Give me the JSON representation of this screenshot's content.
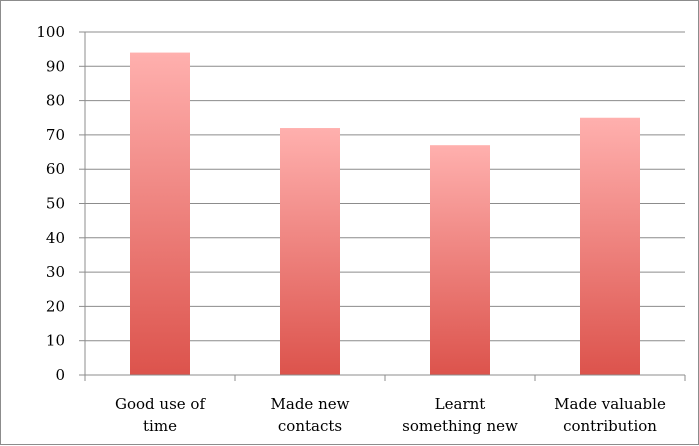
{
  "chart_data": {
    "type": "bar",
    "title": "",
    "xlabel": "",
    "ylabel": "",
    "categories": [
      [
        "Good use of",
        "time"
      ],
      [
        "Made new",
        "contacts"
      ],
      [
        "Learnt",
        "something new"
      ],
      [
        "Made valuable",
        "contribution"
      ]
    ],
    "values": [
      94,
      72,
      67,
      75
    ],
    "ylim": [
      0,
      100
    ],
    "yticks": [
      "0",
      "10",
      "20",
      "30",
      "40",
      "50",
      "60",
      "70",
      "80",
      "90",
      "100"
    ],
    "grid": true,
    "legend": "none",
    "colors": {
      "bar_top": "#ffb0ae",
      "bar_bottom": "#dc534c",
      "grid": "#8c8c8c",
      "axis": "#8c8c8c"
    }
  }
}
